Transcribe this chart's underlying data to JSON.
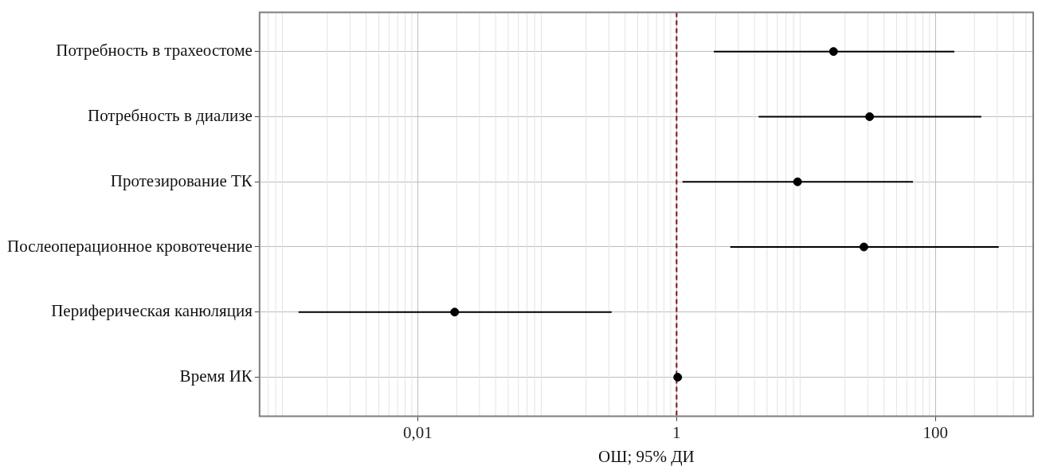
{
  "chart_data": {
    "type": "scatter",
    "orientation": "horizontal",
    "xlabel": "ОШ; 95% ДИ",
    "categories": [
      "Потребность в трахеостоме",
      "Потребность в диализе",
      "Протезирование ТК",
      "Послеоперационное кровотечение",
      "Периферическая канюляция",
      "Время ИК"
    ],
    "values": [
      16.3,
      31,
      8.6,
      28,
      0.0193,
      1.02
    ],
    "errors": [
      [
        1.94,
        140
      ],
      [
        4.3,
        226
      ],
      [
        1.11,
        67
      ],
      [
        2.6,
        308
      ],
      [
        0.0012,
        0.315
      ],
      null
    ],
    "color": "#000000",
    "log": "x",
    "xlim": [
      0.00064,
      569
    ],
    "xticks": [
      {
        "value": 0.01,
        "label": "0,01"
      },
      1,
      100
    ],
    "grid": true,
    "legend": false,
    "marker": "circle",
    "ref_lines": [
      {
        "axis": "x",
        "value": 1,
        "color": "#7b1010",
        "line_style": "dashed"
      }
    ]
  }
}
